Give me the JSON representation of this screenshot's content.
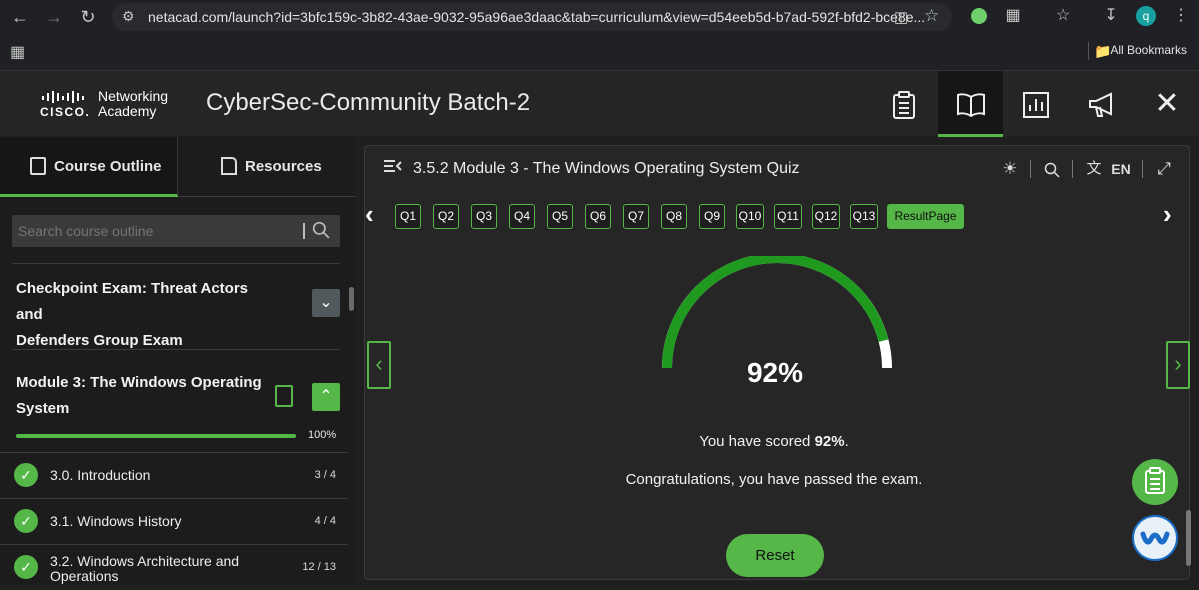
{
  "browser": {
    "url": "netacad.com/launch?id=3bfc159c-3b82-43ae-9032-95a96ae3daac&tab=curriculum&view=d54eeb5d-b7ad-592f-bfd2-bce8e...",
    "all_bookmarks": "All Bookmarks",
    "profile_initial": "q"
  },
  "header": {
    "logo_cisco": "CISCO.",
    "logo_networking": "Networking",
    "logo_academy": "Academy",
    "course_title": "CyberSec-Community Batch-2"
  },
  "sidebar": {
    "tabs": [
      {
        "label": "Course Outline",
        "active": true
      },
      {
        "label": "Resources",
        "active": false
      }
    ],
    "search_placeholder": "Search course outline",
    "sections": [
      {
        "title_line1": "Checkpoint Exam: Threat Actors and",
        "title_line2": "Defenders Group Exam",
        "expanded": false
      },
      {
        "title_line1": "Module 3: The Windows Operating",
        "title_line2": "System",
        "expanded": true,
        "progress": 1.0,
        "progress_label": "100%"
      }
    ],
    "lessons": [
      {
        "title": "3.0. Introduction",
        "count": "3 / 4"
      },
      {
        "title": "3.1. Windows History",
        "count": "4 / 4"
      },
      {
        "title_line1": "3.2. Windows Architecture and",
        "title_line2": "Operations",
        "count": "12 / 13"
      }
    ]
  },
  "quiz": {
    "title": "3.5.2 Module 3 - The Windows Operating System Quiz",
    "language": "EN",
    "questions": [
      "Q1",
      "Q2",
      "Q3",
      "Q4",
      "Q5",
      "Q6",
      "Q7",
      "Q8",
      "Q9",
      "Q10",
      "Q11",
      "Q12",
      "Q13"
    ],
    "result_page": "ResultPage",
    "score": 0.92,
    "score_text": "92%",
    "scored_prefix": "You have scored ",
    "scored_value": "92%",
    "scored_suffix": ".",
    "congrats": "Congratulations, you have passed the exam.",
    "reset_label": "Reset"
  },
  "colors": {
    "accent": "#55b748",
    "gauge_green": "#1f9a1f"
  }
}
